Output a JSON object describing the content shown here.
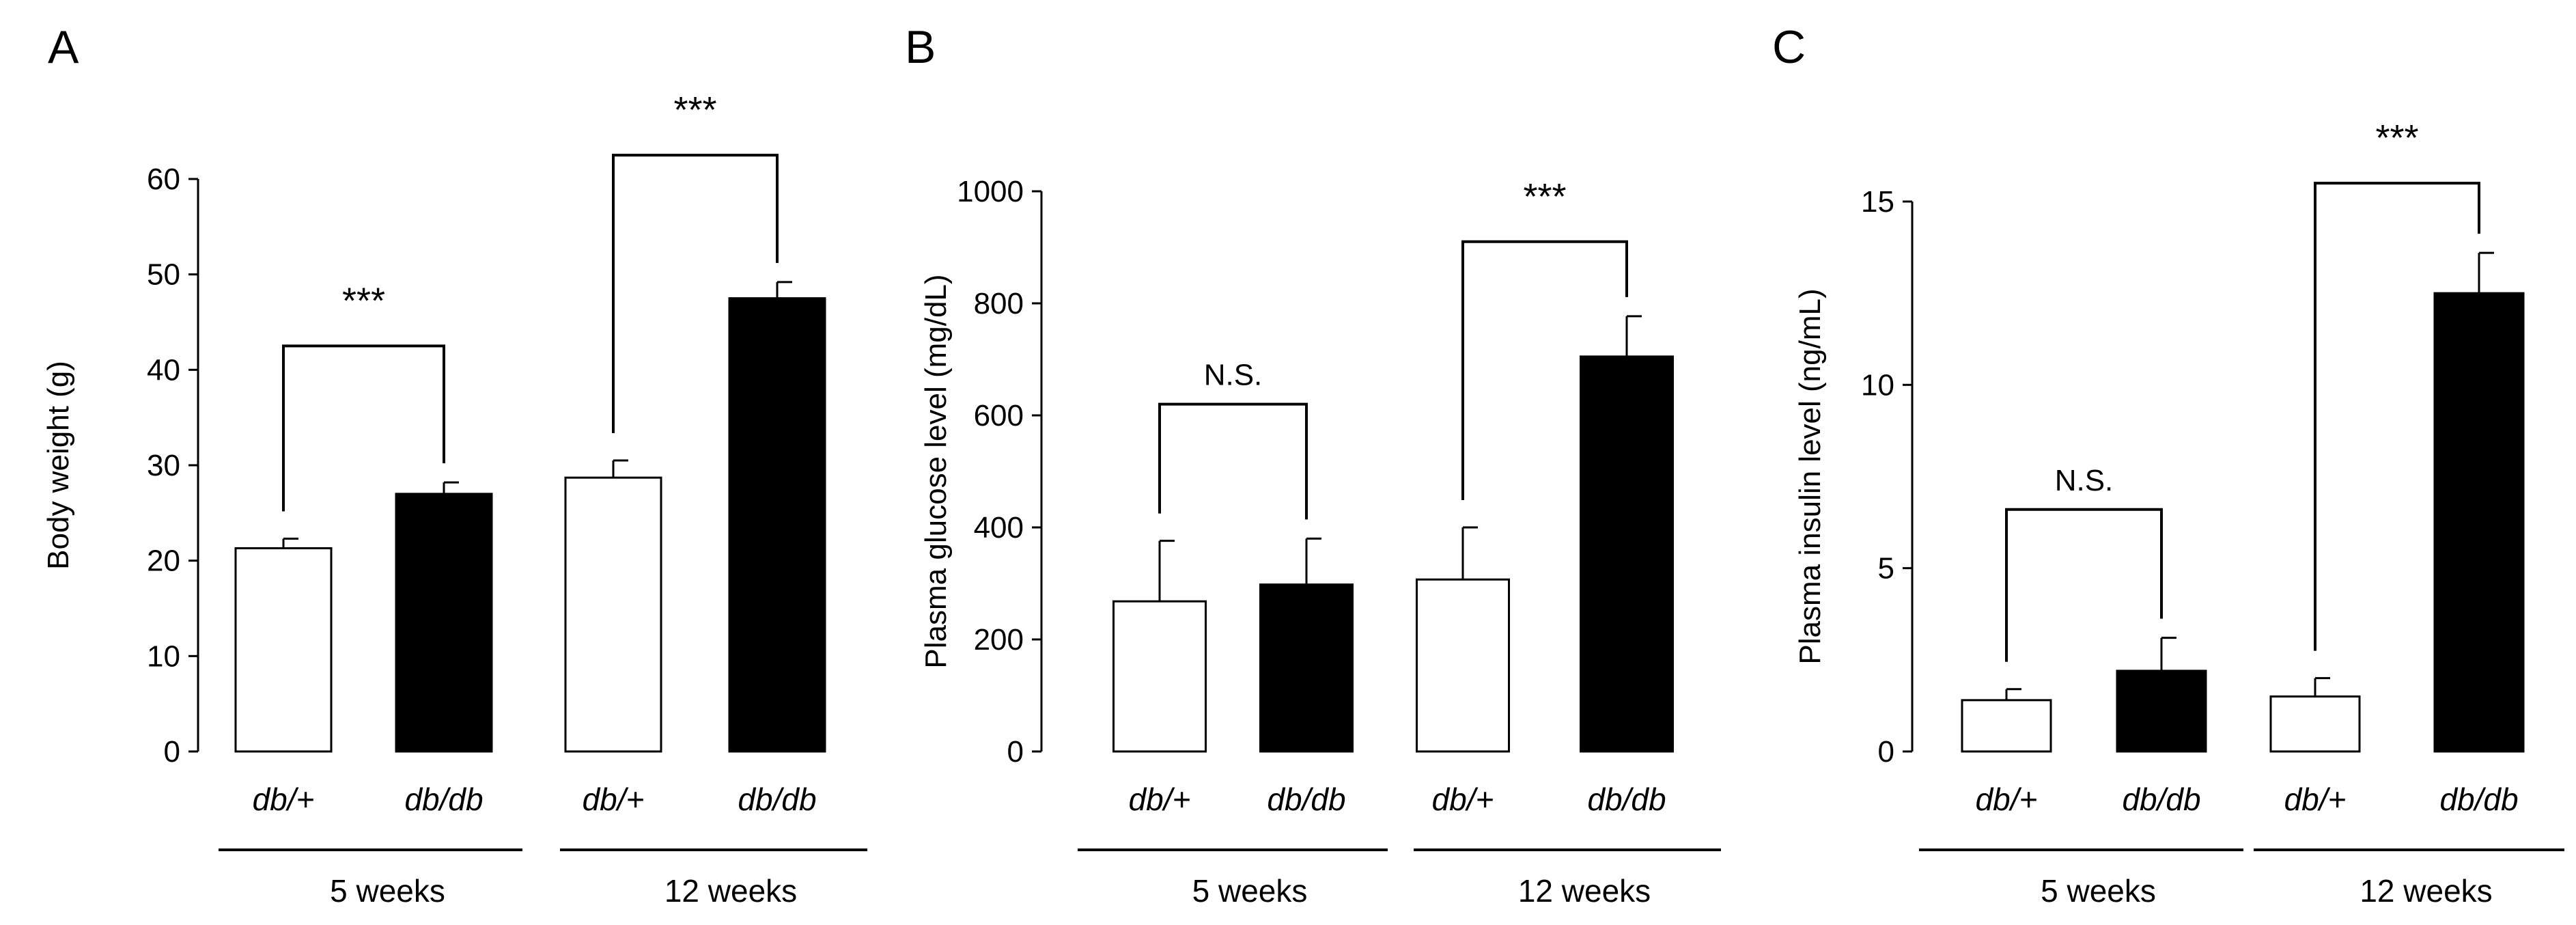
{
  "chart_data": [
    {
      "type": "bar",
      "panel": "A",
      "ylabel": "Body weight (g)",
      "ylim": [
        0,
        60
      ],
      "yticks": [
        "0",
        "10",
        "20",
        "30",
        "40",
        "50",
        "60"
      ],
      "categories": [
        "db/+",
        "db/db",
        "db/+",
        "db/db"
      ],
      "groups": [
        "5 weeks",
        "12 weeks"
      ],
      "values": [
        21.3,
        27.0,
        28.7,
        47.5
      ],
      "errors": [
        1.0,
        1.2,
        1.8,
        1.7
      ],
      "fills": [
        "#ffffff",
        "#000000",
        "#ffffff",
        "#000000"
      ],
      "significance": [
        {
          "pair": [
            0,
            1
          ],
          "label": "***",
          "level": 42.5
        },
        {
          "pair": [
            2,
            3
          ],
          "label": "***",
          "level": 62.5
        }
      ]
    },
    {
      "type": "bar",
      "panel": "B",
      "ylabel": "Plasma glucose level (mg/dL)",
      "ylim": [
        0,
        1000
      ],
      "yticks": [
        "0",
        "200",
        "400",
        "600",
        "800",
        "1000"
      ],
      "categories": [
        "db/+",
        "db/db",
        "db/+",
        "db/db"
      ],
      "groups": [
        "5 weeks",
        "12 weeks"
      ],
      "values": [
        268,
        298,
        307,
        705
      ],
      "errors": [
        108,
        82,
        93,
        72
      ],
      "fills": [
        "#ffffff",
        "#000000",
        "#ffffff",
        "#000000"
      ],
      "significance": [
        {
          "pair": [
            0,
            1
          ],
          "label": "N.S.",
          "level": 620
        },
        {
          "pair": [
            2,
            3
          ],
          "label": "***",
          "level": 910
        }
      ]
    },
    {
      "type": "bar",
      "panel": "C",
      "ylabel": "Plasma insulin level (ng/mL)",
      "ylim": [
        0,
        15
      ],
      "yticks": [
        "0",
        "5",
        "10",
        "15"
      ],
      "categories": [
        "db/+",
        "db/db",
        "db/+",
        "db/db"
      ],
      "groups": [
        "5 weeks",
        "12 weeks"
      ],
      "values": [
        1.4,
        2.2,
        1.5,
        12.5
      ],
      "errors": [
        0.3,
        0.9,
        0.5,
        1.1
      ],
      "fills": [
        "#ffffff",
        "#000000",
        "#ffffff",
        "#000000"
      ],
      "significance": [
        {
          "pair": [
            0,
            1
          ],
          "label": "N.S.",
          "level": 6.6
        },
        {
          "pair": [
            2,
            3
          ],
          "label": "***",
          "level": 15.5
        }
      ]
    }
  ]
}
